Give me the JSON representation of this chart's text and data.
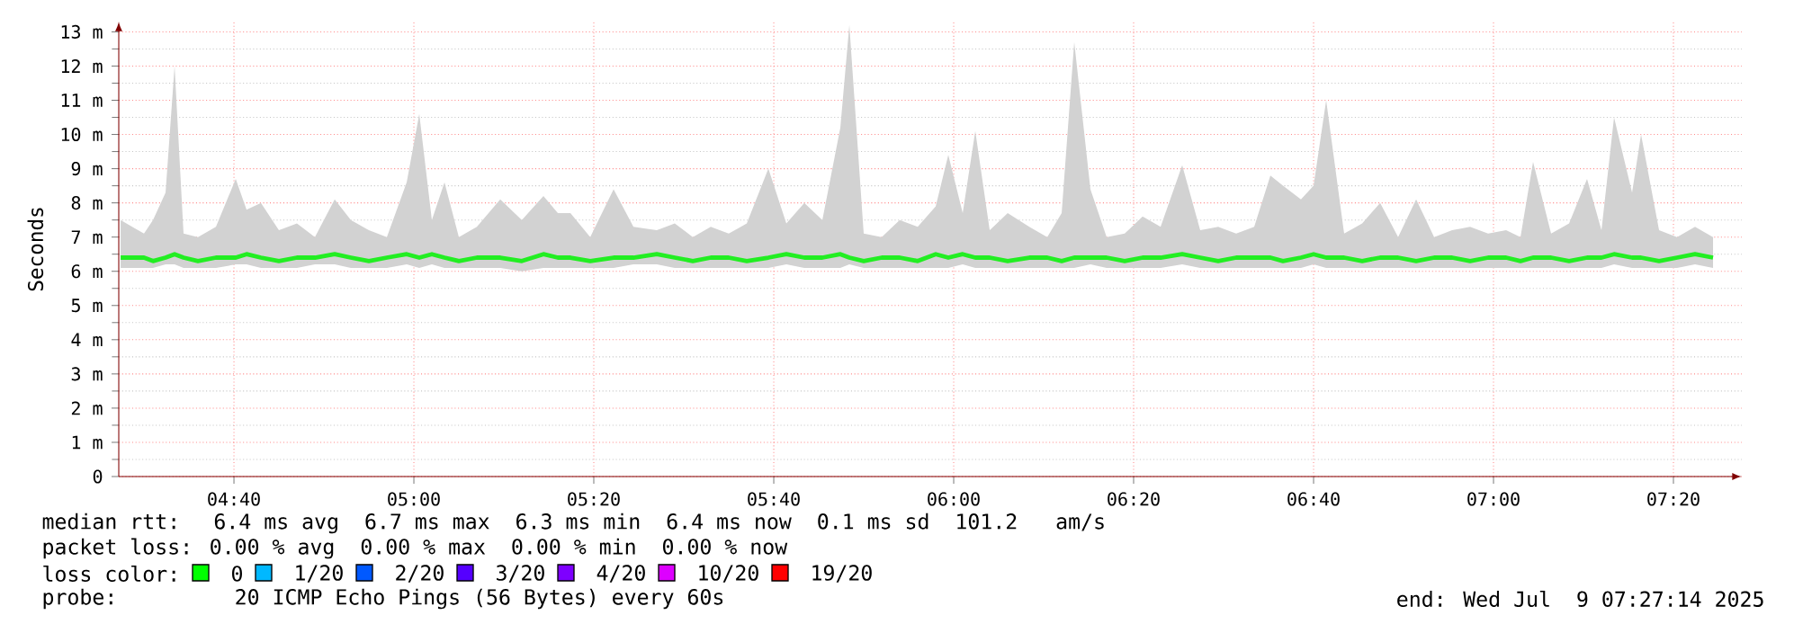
{
  "chart_data": {
    "type": "line",
    "ylabel": "Seconds",
    "x": [
      4.4567,
      4.5,
      4.5167,
      4.54,
      4.5567,
      4.5733,
      4.6,
      4.6333,
      4.67,
      4.69,
      4.7167,
      4.75,
      4.7833,
      4.8167,
      4.8533,
      4.8833,
      4.9167,
      4.95,
      4.9867,
      5.01,
      5.0333,
      5.0567,
      5.0833,
      5.1167,
      5.16,
      5.2,
      5.24,
      5.2667,
      5.29,
      5.3267,
      5.37,
      5.4067,
      5.45,
      5.4833,
      5.5167,
      5.55,
      5.5833,
      5.6167,
      5.6567,
      5.69,
      5.7233,
      5.7567,
      5.79,
      5.8067,
      5.8333,
      5.8667,
      5.9,
      5.9333,
      5.9667,
      5.99,
      6.0167,
      6.04,
      6.0667,
      6.1,
      6.14,
      6.1733,
      6.2,
      6.2233,
      6.2533,
      6.2833,
      6.3167,
      6.35,
      6.3833,
      6.4233,
      6.4567,
      6.49,
      6.5233,
      6.5567,
      6.5867,
      6.61,
      6.6433,
      6.6667,
      6.69,
      6.7233,
      6.7567,
      6.79,
      6.8233,
      6.8567,
      6.89,
      6.9233,
      6.9567,
      6.99,
      7.0233,
      7.05,
      7.0733,
      7.1067,
      7.14,
      7.1733,
      7.2,
      7.2233,
      7.2567,
      7.2733,
      7.3067,
      7.34,
      7.3733,
      7.4067
    ],
    "series": [
      {
        "color": "#22ee22",
        "values": [
          6.4,
          6.4,
          6.3,
          6.4,
          6.5,
          6.4,
          6.3,
          6.4,
          6.4,
          6.5,
          6.4,
          6.3,
          6.4,
          6.4,
          6.5,
          6.4,
          6.3,
          6.4,
          6.5,
          6.4,
          6.5,
          6.4,
          6.3,
          6.4,
          6.4,
          6.3,
          6.5,
          6.4,
          6.4,
          6.3,
          6.4,
          6.4,
          6.5,
          6.4,
          6.3,
          6.4,
          6.4,
          6.3,
          6.4,
          6.5,
          6.4,
          6.4,
          6.5,
          6.4,
          6.3,
          6.4,
          6.4,
          6.3,
          6.5,
          6.4,
          6.5,
          6.4,
          6.4,
          6.3,
          6.4,
          6.4,
          6.3,
          6.4,
          6.4,
          6.4,
          6.3,
          6.4,
          6.4,
          6.5,
          6.4,
          6.3,
          6.4,
          6.4,
          6.4,
          6.3,
          6.4,
          6.5,
          6.4,
          6.4,
          6.3,
          6.4,
          6.4,
          6.3,
          6.4,
          6.4,
          6.3,
          6.4,
          6.4,
          6.3,
          6.4,
          6.4,
          6.3,
          6.4,
          6.4,
          6.5,
          6.4,
          6.4,
          6.3,
          6.4,
          6.5,
          6.4
        ],
        "lower": [
          6.1,
          6.1,
          6.1,
          6.2,
          6.2,
          6.1,
          6.1,
          6.1,
          6.2,
          6.2,
          6.1,
          6.1,
          6.1,
          6.2,
          6.2,
          6.1,
          6.1,
          6.1,
          6.2,
          6.1,
          6.2,
          6.1,
          6.1,
          6.1,
          6.1,
          6.0,
          6.1,
          6.1,
          6.1,
          6.1,
          6.1,
          6.2,
          6.2,
          6.1,
          6.1,
          6.1,
          6.1,
          6.1,
          6.1,
          6.2,
          6.1,
          6.1,
          6.1,
          6.2,
          6.1,
          6.1,
          6.1,
          6.1,
          6.1,
          6.1,
          6.2,
          6.1,
          6.1,
          6.1,
          6.1,
          6.1,
          6.1,
          6.1,
          6.2,
          6.1,
          6.1,
          6.1,
          6.1,
          6.2,
          6.1,
          6.1,
          6.1,
          6.1,
          6.1,
          6.1,
          6.1,
          6.2,
          6.1,
          6.1,
          6.1,
          6.1,
          6.1,
          6.1,
          6.1,
          6.1,
          6.1,
          6.1,
          6.1,
          6.1,
          6.1,
          6.1,
          6.1,
          6.1,
          6.1,
          6.2,
          6.1,
          6.1,
          6.1,
          6.1,
          6.2,
          6.1
        ],
        "upper": [
          7.5,
          7.1,
          7.5,
          8.3,
          12.0,
          7.1,
          7.0,
          7.3,
          8.7,
          7.8,
          8.0,
          7.2,
          7.4,
          7.0,
          8.1,
          7.5,
          7.2,
          7.0,
          8.6,
          10.6,
          7.5,
          8.6,
          7.0,
          7.3,
          8.1,
          7.5,
          8.2,
          7.7,
          7.7,
          7.0,
          8.4,
          7.3,
          7.2,
          7.4,
          7.0,
          7.3,
          7.1,
          7.4,
          9.0,
          7.4,
          8.0,
          7.5,
          10.2,
          13.2,
          7.1,
          7.0,
          7.5,
          7.3,
          7.9,
          9.4,
          7.7,
          10.1,
          7.2,
          7.7,
          7.3,
          7.0,
          7.7,
          12.7,
          8.4,
          7.0,
          7.1,
          7.6,
          7.3,
          9.1,
          7.2,
          7.3,
          7.1,
          7.3,
          8.8,
          8.5,
          8.1,
          8.5,
          11.0,
          7.1,
          7.4,
          8.0,
          7.0,
          8.1,
          7.0,
          7.2,
          7.3,
          7.1,
          7.2,
          7.0,
          9.2,
          7.1,
          7.4,
          8.7,
          7.2,
          10.5,
          8.3,
          10.0,
          7.2,
          7.0,
          7.3,
          7.0
        ]
      }
    ],
    "xlim": [
      4.4533,
      7.46
    ],
    "xticks": [
      {
        "value": 4.6667,
        "label": "04:40"
      },
      {
        "value": 5.0,
        "label": "05:00"
      },
      {
        "value": 5.3333,
        "label": "05:20"
      },
      {
        "value": 5.6667,
        "label": "05:40"
      },
      {
        "value": 6.0,
        "label": "06:00"
      },
      {
        "value": 6.3333,
        "label": "06:20"
      },
      {
        "value": 6.6667,
        "label": "06:40"
      },
      {
        "value": 7.0,
        "label": "07:00"
      },
      {
        "value": 7.3333,
        "label": "07:20"
      }
    ],
    "ylim": [
      0,
      13.3
    ],
    "yticks": [
      0,
      {
        "value": 1,
        "label": "1 m"
      },
      {
        "value": 2,
        "label": "2 m"
      },
      {
        "value": 3,
        "label": "3 m"
      },
      {
        "value": 4,
        "label": "4 m"
      },
      {
        "value": 5,
        "label": "5 m"
      },
      {
        "value": 6,
        "label": "6 m"
      },
      {
        "value": 7,
        "label": "7 m"
      },
      {
        "value": 8,
        "label": "8 m"
      },
      {
        "value": 9,
        "label": "9 m"
      },
      {
        "value": 10,
        "label": "10 m"
      },
      {
        "value": 11,
        "label": "11 m"
      },
      {
        "value": 12,
        "label": "12 m"
      },
      {
        "value": 13,
        "label": "13 m"
      }
    ],
    "grid": true,
    "annotations": [
      "median rtt:  6.4 ms avg  6.7 ms max  6.3 ms min  6.4 ms now  0.1 ms sd  101.2   am/s",
      "packet loss: 0.00 % avg  0.00 % max  0.00 % min  0.00 % now",
      "loss color:",
      "0",
      "1/20",
      "2/20",
      "3/20",
      "4/20",
      "10/20",
      "19/20",
      "probe:       20 ICMP Echo Pings (56 Bytes) every 60s",
      "end: Wed Jul  9 07:27:14 2025"
    ]
  }
}
